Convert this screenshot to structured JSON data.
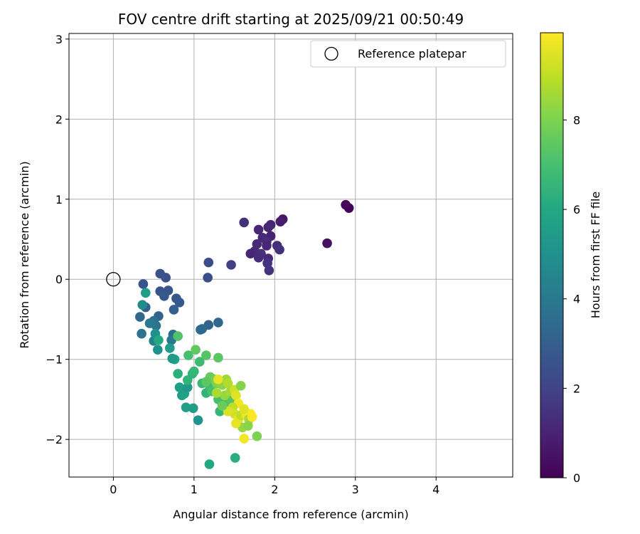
{
  "chart_data": {
    "type": "scatter",
    "title": "FOV centre drift starting at 2025/09/21 00:50:49",
    "xlabel": "Angular distance from reference (arcmin)",
    "ylabel": "Rotation from reference (arcmin)",
    "xlim": [
      -0.55,
      4.95
    ],
    "ylim": [
      -2.47,
      3.07
    ],
    "x_ticks": [
      0,
      1,
      2,
      3,
      4
    ],
    "y_ticks": [
      -2,
      -1,
      0,
      1,
      2,
      3
    ],
    "grid": true,
    "legend": {
      "position": "top-right",
      "entries": [
        "Reference platepar"
      ]
    },
    "reference_point": {
      "label": "Reference platepar",
      "x": 0,
      "y": 0
    },
    "colorbar": {
      "label": "Hours from first FF file",
      "range": [
        0,
        9.95
      ],
      "ticks": [
        0,
        2,
        4,
        6,
        8
      ],
      "colormap": "viridis"
    },
    "points": [
      {
        "x": 2.92,
        "y": 0.89,
        "h": 0.05
      },
      {
        "x": 2.88,
        "y": 0.93,
        "h": 0.2
      },
      {
        "x": 2.65,
        "y": 0.45,
        "h": 0.4
      },
      {
        "x": 2.1,
        "y": 0.75,
        "h": 0.6
      },
      {
        "x": 2.07,
        "y": 0.72,
        "h": 0.8
      },
      {
        "x": 1.95,
        "y": 0.68,
        "h": 1.0
      },
      {
        "x": 1.92,
        "y": 0.65,
        "h": 1.1
      },
      {
        "x": 1.8,
        "y": 0.62,
        "h": 1.15
      },
      {
        "x": 1.62,
        "y": 0.71,
        "h": 1.4
      },
      {
        "x": 1.95,
        "y": 0.54,
        "h": 1.0
      },
      {
        "x": 1.85,
        "y": 0.52,
        "h": 1.2
      },
      {
        "x": 1.9,
        "y": 0.47,
        "h": 1.3
      },
      {
        "x": 1.78,
        "y": 0.44,
        "h": 1.2
      },
      {
        "x": 1.9,
        "y": 0.42,
        "h": 1.1
      },
      {
        "x": 2.03,
        "y": 0.42,
        "h": 1.3
      },
      {
        "x": 2.06,
        "y": 0.37,
        "h": 1.4
      },
      {
        "x": 1.75,
        "y": 0.35,
        "h": 1.2
      },
      {
        "x": 1.83,
        "y": 0.32,
        "h": 1.4
      },
      {
        "x": 1.7,
        "y": 0.32,
        "h": 1.1
      },
      {
        "x": 1.8,
        "y": 0.27,
        "h": 1.3
      },
      {
        "x": 1.92,
        "y": 0.26,
        "h": 1.2
      },
      {
        "x": 1.91,
        "y": 0.2,
        "h": 1.5
      },
      {
        "x": 1.93,
        "y": 0.11,
        "h": 1.5
      },
      {
        "x": 1.46,
        "y": 0.18,
        "h": 1.9
      },
      {
        "x": 1.18,
        "y": 0.21,
        "h": 2.3
      },
      {
        "x": 1.17,
        "y": 0.02,
        "h": 2.4
      },
      {
        "x": 0.58,
        "y": 0.07,
        "h": 2.5
      },
      {
        "x": 0.65,
        "y": 0.02,
        "h": 2.5
      },
      {
        "x": 0.37,
        "y": -0.06,
        "h": 2.6
      },
      {
        "x": 0.58,
        "y": -0.15,
        "h": 2.6
      },
      {
        "x": 0.62,
        "y": -0.18,
        "h": 2.7
      },
      {
        "x": 0.68,
        "y": -0.14,
        "h": 2.7
      },
      {
        "x": 0.63,
        "y": -0.21,
        "h": 2.8
      },
      {
        "x": 0.78,
        "y": -0.24,
        "h": 2.7
      },
      {
        "x": 0.82,
        "y": -0.29,
        "h": 2.8
      },
      {
        "x": 0.4,
        "y": -0.35,
        "h": 3.0
      },
      {
        "x": 0.75,
        "y": -0.38,
        "h": 3.0
      },
      {
        "x": 0.33,
        "y": -0.47,
        "h": 3.3
      },
      {
        "x": 0.56,
        "y": -0.46,
        "h": 3.2
      },
      {
        "x": 1.18,
        "y": -0.57,
        "h": 3.2
      },
      {
        "x": 1.3,
        "y": -0.54,
        "h": 3.3
      },
      {
        "x": 1.1,
        "y": -0.62,
        "h": 3.3
      },
      {
        "x": 1.08,
        "y": -0.63,
        "h": 3.4
      },
      {
        "x": 0.5,
        "y": -0.52,
        "h": 3.7
      },
      {
        "x": 0.53,
        "y": -0.58,
        "h": 3.8
      },
      {
        "x": 0.45,
        "y": -0.55,
        "h": 4.0
      },
      {
        "x": 0.35,
        "y": -0.68,
        "h": 3.8
      },
      {
        "x": 0.74,
        "y": -0.69,
        "h": 3.6
      },
      {
        "x": 0.72,
        "y": -0.76,
        "h": 4.0
      },
      {
        "x": 0.5,
        "y": -0.77,
        "h": 4.4
      },
      {
        "x": 0.36,
        "y": -0.32,
        "h": 4.8
      },
      {
        "x": 0.4,
        "y": -0.17,
        "h": 5.5
      },
      {
        "x": 0.52,
        "y": -0.68,
        "h": 5.0
      },
      {
        "x": 0.55,
        "y": -0.88,
        "h": 5.0
      },
      {
        "x": 0.7,
        "y": -0.86,
        "h": 5.5
      },
      {
        "x": 0.76,
        "y": -1.0,
        "h": 5.9
      },
      {
        "x": 0.73,
        "y": -0.99,
        "h": 5.4
      },
      {
        "x": 0.56,
        "y": -0.76,
        "h": 6.0
      },
      {
        "x": 1.05,
        "y": -1.76,
        "h": 5.2
      },
      {
        "x": 0.85,
        "y": -1.45,
        "h": 5.5
      },
      {
        "x": 0.88,
        "y": -1.43,
        "h": 5.7
      },
      {
        "x": 0.82,
        "y": -1.35,
        "h": 5.6
      },
      {
        "x": 0.92,
        "y": -1.35,
        "h": 5.3
      },
      {
        "x": 0.9,
        "y": -1.6,
        "h": 5.6
      },
      {
        "x": 0.99,
        "y": -1.61,
        "h": 5.5
      },
      {
        "x": 1.19,
        "y": -2.31,
        "h": 6.0
      },
      {
        "x": 1.51,
        "y": -2.23,
        "h": 6.2
      },
      {
        "x": 0.8,
        "y": -1.18,
        "h": 6.3
      },
      {
        "x": 0.92,
        "y": -1.26,
        "h": 6.5
      },
      {
        "x": 0.98,
        "y": -1.18,
        "h": 6.4
      },
      {
        "x": 1.0,
        "y": -1.15,
        "h": 6.6
      },
      {
        "x": 1.07,
        "y": -1.03,
        "h": 6.8
      },
      {
        "x": 0.93,
        "y": -0.95,
        "h": 7.0
      },
      {
        "x": 1.02,
        "y": -0.88,
        "h": 7.5
      },
      {
        "x": 0.8,
        "y": -0.71,
        "h": 7.2
      },
      {
        "x": 1.15,
        "y": -0.95,
        "h": 7.3
      },
      {
        "x": 1.3,
        "y": -0.98,
        "h": 7.4
      },
      {
        "x": 1.1,
        "y": -1.3,
        "h": 6.6
      },
      {
        "x": 1.15,
        "y": -1.42,
        "h": 6.5
      },
      {
        "x": 1.2,
        "y": -1.35,
        "h": 6.8
      },
      {
        "x": 1.22,
        "y": -1.4,
        "h": 7.0
      },
      {
        "x": 1.3,
        "y": -1.5,
        "h": 7.0
      },
      {
        "x": 1.32,
        "y": -1.65,
        "h": 6.6
      },
      {
        "x": 1.35,
        "y": -1.55,
        "h": 6.9
      },
      {
        "x": 1.4,
        "y": -1.6,
        "h": 7.1
      },
      {
        "x": 1.45,
        "y": -1.5,
        "h": 7.3
      },
      {
        "x": 1.2,
        "y": -1.22,
        "h": 7.6
      },
      {
        "x": 1.25,
        "y": -1.25,
        "h": 7.8
      },
      {
        "x": 1.15,
        "y": -1.28,
        "h": 7.4
      },
      {
        "x": 1.28,
        "y": -1.3,
        "h": 8.0
      },
      {
        "x": 1.35,
        "y": -1.32,
        "h": 8.2
      },
      {
        "x": 1.4,
        "y": -1.25,
        "h": 8.5
      },
      {
        "x": 1.42,
        "y": -1.3,
        "h": 8.8
      },
      {
        "x": 1.38,
        "y": -1.45,
        "h": 8.4
      },
      {
        "x": 1.45,
        "y": -1.4,
        "h": 8.6
      },
      {
        "x": 1.5,
        "y": -1.38,
        "h": 9.2
      },
      {
        "x": 1.52,
        "y": -1.45,
        "h": 9.5
      },
      {
        "x": 1.55,
        "y": -1.55,
        "h": 9.8
      },
      {
        "x": 1.48,
        "y": -1.6,
        "h": 9.0
      },
      {
        "x": 1.5,
        "y": -1.68,
        "h": 9.3
      },
      {
        "x": 1.55,
        "y": -1.75,
        "h": 9.6
      },
      {
        "x": 1.58,
        "y": -1.7,
        "h": 9.0
      },
      {
        "x": 1.62,
        "y": -1.65,
        "h": 9.1
      },
      {
        "x": 1.65,
        "y": -1.7,
        "h": 9.7
      },
      {
        "x": 1.7,
        "y": -1.68,
        "h": 9.9
      },
      {
        "x": 1.68,
        "y": -1.75,
        "h": 8.6
      },
      {
        "x": 1.6,
        "y": -1.85,
        "h": 8.4
      },
      {
        "x": 1.52,
        "y": -1.8,
        "h": 9.6
      },
      {
        "x": 1.62,
        "y": -1.99,
        "h": 9.8
      },
      {
        "x": 1.78,
        "y": -1.96,
        "h": 8.0
      },
      {
        "x": 1.67,
        "y": -1.83,
        "h": 8.2
      },
      {
        "x": 1.58,
        "y": -1.33,
        "h": 8.1
      },
      {
        "x": 1.42,
        "y": -1.65,
        "h": 9.4
      },
      {
        "x": 1.35,
        "y": -1.58,
        "h": 7.7
      },
      {
        "x": 1.28,
        "y": -1.42,
        "h": 8.7
      },
      {
        "x": 1.62,
        "y": -1.62,
        "h": 9.5
      },
      {
        "x": 1.72,
        "y": -1.72,
        "h": 9.9
      },
      {
        "x": 1.3,
        "y": -1.25,
        "h": 9.6
      }
    ]
  }
}
